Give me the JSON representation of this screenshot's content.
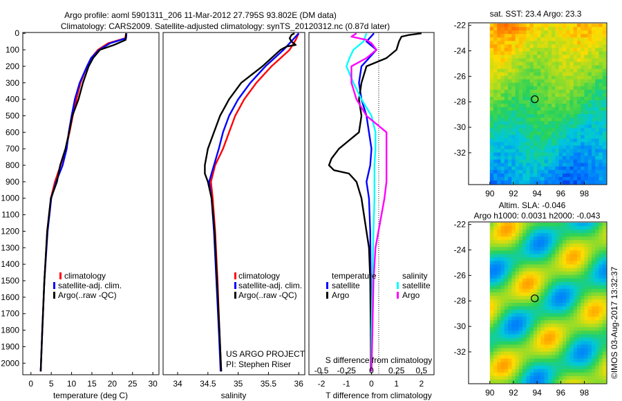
{
  "title": {
    "line1": "Argo profile: aoml 5901311_206 11-Mar-2012 27.795S 93.802E (DM data)",
    "line2": "Climatology: CARS2009. Satellite-adjusted climatology: synTS_20120312.nc (0.87d later)"
  },
  "colors": {
    "climatology": "#ff0000",
    "satellite": "#0000ff",
    "argo": "#000000",
    "sat_salinity": "#00ffff",
    "argo_salinity": "#ff00ff"
  },
  "depth_ticks": [
    "0",
    "100",
    "200",
    "300",
    "400",
    "500",
    "600",
    "700",
    "800",
    "900",
    "1000",
    "1100",
    "1200",
    "1300",
    "1400",
    "1500",
    "1600",
    "1700",
    "1800",
    "1900",
    "2000"
  ],
  "chart_data": [
    {
      "type": "line",
      "xlabel": "temperature (deg C)",
      "x_ticks": [
        "0",
        "5",
        "10",
        "15",
        "20",
        "25",
        "30"
      ],
      "xlim": [
        -2,
        31.5
      ],
      "ylim": [
        2070,
        -5
      ],
      "legend": {
        "entries": [
          "climatology",
          "satellite-adj. clim.",
          "Argo(..raw -QC)"
        ]
      },
      "series": [
        {
          "name": "climatology",
          "color": "#ff0000",
          "depth": [
            0,
            30,
            60,
            100,
            150,
            200,
            300,
            400,
            500,
            600,
            700,
            800,
            900,
            1000,
            1200,
            1500,
            1800,
            2050
          ],
          "values": [
            23.4,
            23.2,
            19,
            16.5,
            14.8,
            13.8,
            12.2,
            11.2,
            10.3,
            9.5,
            8.6,
            7.3,
            5.9,
            4.9,
            4,
            3.3,
            2.8,
            2.4
          ]
        },
        {
          "name": "satellite-adj. clim.",
          "color": "#0000ff",
          "depth": [
            0,
            30,
            60,
            100,
            150,
            200,
            300,
            400,
            500,
            600,
            700,
            800,
            900,
            1000,
            1200,
            1500,
            1800,
            2050
          ],
          "values": [
            23.5,
            23.4,
            19.5,
            16.8,
            14.8,
            13.8,
            12,
            10.8,
            10,
            9.3,
            8.8,
            7.8,
            6.2,
            5,
            4.1,
            3.3,
            2.8,
            2.4
          ]
        },
        {
          "name": "Argo(..raw -QC)",
          "color": "#000000",
          "depth": [
            0,
            40,
            70,
            100,
            150,
            200,
            300,
            400,
            500,
            600,
            700,
            800,
            850,
            900,
            1000,
            1200,
            1500,
            1800,
            2050
          ],
          "values": [
            23.4,
            23.3,
            20.5,
            17,
            15.3,
            14.2,
            12.8,
            11.7,
            10.2,
            9.4,
            8.5,
            7.2,
            6.8,
            6.4,
            4.9,
            4,
            3.3,
            2.8,
            2.4
          ]
        }
      ]
    },
    {
      "type": "line",
      "xlabel": "salinity",
      "x_ticks": [
        "34",
        "34.5",
        "35",
        "35.5",
        "36"
      ],
      "xlim": [
        33.76,
        36.1
      ],
      "ylim": [
        2070,
        -5
      ],
      "legend": {
        "entries": [
          "climatology",
          "satellite-adj. clim.",
          "Argo(..raw -QC)"
        ]
      },
      "annotation": {
        "line1": "US ARGO PROJECT",
        "line2": "PI: Stephen Riser"
      },
      "series": [
        {
          "name": "climatology",
          "color": "#ff0000",
          "depth": [
            0,
            40,
            100,
            150,
            200,
            300,
            400,
            500,
            600,
            700,
            800,
            900,
            1000,
            1200,
            1500,
            1800,
            2050
          ],
          "values": [
            36,
            35.95,
            35.85,
            35.7,
            35.55,
            35.3,
            35.1,
            34.95,
            34.85,
            34.75,
            34.62,
            34.55,
            34.58,
            34.62,
            34.66,
            34.69,
            34.72
          ]
        },
        {
          "name": "satellite-adj. clim.",
          "color": "#0000ff",
          "depth": [
            0,
            40,
            100,
            150,
            200,
            300,
            400,
            500,
            600,
            700,
            800,
            900,
            1000,
            1200,
            1500,
            1800,
            2050
          ],
          "values": [
            36,
            35.9,
            35.75,
            35.6,
            35.45,
            35.2,
            35.0,
            34.85,
            34.75,
            34.68,
            34.6,
            34.52,
            34.56,
            34.6,
            34.64,
            34.68,
            34.71
          ]
        },
        {
          "name": "Argo(..raw -QC)",
          "color": "#000000",
          "depth": [
            0,
            10,
            30,
            50,
            70,
            80,
            100,
            150,
            200,
            300,
            400,
            500,
            600,
            700,
            800,
            850,
            900,
            1000,
            1200,
            1500,
            1800,
            2050
          ],
          "values": [
            35.93,
            35.88,
            35.85,
            35.88,
            35.95,
            35.8,
            35.7,
            35.55,
            35.4,
            35.05,
            34.85,
            34.7,
            34.6,
            34.5,
            34.45,
            34.45,
            34.5,
            34.56,
            34.61,
            34.65,
            34.69,
            34.72
          ]
        }
      ]
    },
    {
      "type": "line",
      "xlabel": "T difference from climatology",
      "x2label": "S difference from climatology",
      "x_ticks": [
        "-2",
        "-1",
        "0",
        "1",
        "2"
      ],
      "x2_ticks": [
        "-0.5",
        "-0.25",
        "0",
        "0.25",
        "0.5"
      ],
      "xlim": [
        -2.5,
        2.5
      ],
      "ylim": [
        2070,
        -5
      ],
      "legend": {
        "temperature_header": "temperature",
        "salinity_header": "salinity",
        "entries": [
          "satellite",
          "Argo",
          "satellite",
          "Argo"
        ]
      },
      "series": [
        {
          "name": "satellite",
          "group": "temperature",
          "color": "#0000ff",
          "depth": [
            0,
            50,
            100,
            150,
            200,
            300,
            400,
            500,
            600,
            700,
            800,
            900,
            1000,
            1200,
            1500,
            1800,
            2050
          ],
          "values": [
            0.1,
            -0.2,
            0.2,
            -0.1,
            -0.4,
            -0.5,
            -0.4,
            -0.2,
            -0.1,
            0,
            -0.05,
            -0.2,
            -0.1,
            -0.05,
            -0.03,
            -0.02,
            -0.02
          ]
        },
        {
          "name": "Argo",
          "group": "temperature",
          "color": "#000000",
          "depth": [
            0,
            10,
            20,
            50,
            100,
            150,
            200,
            300,
            400,
            500,
            600,
            700,
            760,
            800,
            830,
            850,
            900,
            1000,
            1100,
            1300,
            1500,
            1800,
            2050
          ],
          "values": [
            2.0,
            1.5,
            1.2,
            1.1,
            1.0,
            0.6,
            -0.2,
            -0.4,
            -0.5,
            -0.4,
            -0.5,
            -1.3,
            -1.6,
            -1.7,
            -1.5,
            -0.9,
            -0.6,
            -0.4,
            -0.3,
            -0.1,
            -0.05,
            -0.03,
            -0.02
          ]
        },
        {
          "name": "satellite",
          "group": "salinity",
          "color": "#00ffff",
          "depth": [
            0,
            50,
            100,
            150,
            200,
            300,
            400,
            500,
            600,
            700,
            800,
            900,
            1000,
            1200,
            1500,
            1800,
            2050
          ],
          "values": [
            -0.05,
            -0.08,
            -0.18,
            -0.22,
            -0.25,
            -0.18,
            -0.1,
            0,
            0.04,
            0.04,
            0.03,
            0.03,
            0.03,
            0.02,
            0.01,
            0.0,
            0.0
          ]
        },
        {
          "name": "Argo",
          "group": "salinity",
          "color": "#ff00ff",
          "depth": [
            0,
            20,
            40,
            60,
            100,
            150,
            200,
            300,
            400,
            500,
            600,
            700,
            800,
            900,
            1000,
            1100,
            1200,
            1300,
            1500,
            1800,
            2050
          ],
          "values": [
            -0.15,
            -0.2,
            -0.05,
            0,
            0.05,
            -0.05,
            -0.2,
            -0.2,
            -0.15,
            -0.05,
            0.15,
            0.15,
            0.15,
            0.15,
            0.13,
            0.1,
            0.07,
            0.04,
            0.02,
            0.01,
            0.0
          ]
        }
      ]
    },
    {
      "type": "heatmap",
      "title": "sat. SST: 23.4  Argo: 23.3",
      "x_ticks": [
        "90",
        "92",
        "94",
        "96",
        "98"
      ],
      "y_ticks": [
        "-22",
        "-24",
        "-26",
        "-28",
        "-30",
        "-32"
      ],
      "xlim": [
        88.2,
        99.9
      ],
      "ylim": [
        -34.5,
        -21.8
      ],
      "argo_position": {
        "lon": 93.8,
        "lat": -27.8
      }
    },
    {
      "type": "heatmap",
      "title": "Altim. SLA: -0.046",
      "subtitle": "Argo h1000: 0.0031  h2000: -0.043",
      "x_ticks": [
        "90",
        "92",
        "94",
        "96",
        "98"
      ],
      "y_ticks": [
        "-22",
        "-24",
        "-26",
        "-28",
        "-30",
        "-32"
      ],
      "xlim": [
        88.2,
        99.9
      ],
      "ylim": [
        -34.5,
        -21.8
      ],
      "argo_position": {
        "lon": 93.8,
        "lat": -27.8
      }
    }
  ],
  "credit": "©IMOS 03-Aug-2017 13:32:37"
}
